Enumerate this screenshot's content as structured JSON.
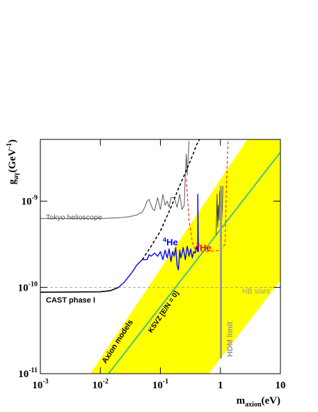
{
  "chart_data": {
    "type": "line",
    "log_x": true,
    "log_y": true,
    "xlim": [
      0.001,
      10
    ],
    "ylim": [
      1e-11,
      5.2e-09
    ],
    "xticks": [
      {
        "value": 0.001,
        "label": "10",
        "exponent": "-3"
      },
      {
        "value": 0.01,
        "label": "10",
        "exponent": "-2"
      },
      {
        "value": 0.1,
        "label": "10",
        "exponent": "-1"
      },
      {
        "value": 1,
        "label": "1"
      },
      {
        "value": 10,
        "label": "10"
      }
    ],
    "yticks": [
      {
        "value": 1e-11,
        "label": "10",
        "exponent": "-11"
      },
      {
        "value": 1e-10,
        "label": "10",
        "exponent": "-10"
      },
      {
        "value": 1e-09,
        "label": "10",
        "exponent": "-9"
      }
    ],
    "xlabel": {
      "main": "m",
      "sub": "axion",
      "rest": "(eV)"
    },
    "ylabel": {
      "main": "g",
      "sub": "aγ",
      "rest": "(GeV",
      "sup": "-1",
      "close": ")"
    },
    "bands": [
      {
        "color": "#ffff00",
        "x": [
          0.0068,
          0.64,
          10,
          10,
          2.8
        ],
        "values": [
          1e-11,
          1e-11,
          1.2e-10,
          5.2e-09,
          5.2e-09
        ]
      }
    ],
    "series": [
      {
        "color": "#49c08a",
        "width": 2,
        "dash": false,
        "x": [
          0.0137,
          10
        ],
        "values": [
          1e-11,
          3.7e-09
        ]
      },
      {
        "color": "#999999",
        "width": 0.8,
        "dash": true,
        "x": [
          0.001,
          10
        ],
        "values": [
          1e-10,
          1e-10
        ]
      },
      {
        "color": "#555555",
        "width": 1,
        "dash": false,
        "x": [
          0.001,
          0.01,
          0.02,
          0.03,
          0.04,
          0.05,
          0.055,
          0.06,
          0.065,
          0.07,
          0.075,
          0.08,
          0.09,
          0.1,
          0.11,
          0.12,
          0.13,
          0.14,
          0.15,
          0.17,
          0.19,
          0.21,
          0.23,
          0.25,
          0.26,
          0.27,
          0.28,
          0.3
        ],
        "values": [
          6.3e-10,
          6.3e-10,
          6.4e-10,
          6.6e-10,
          6.9e-10,
          7.5e-10,
          8.5e-10,
          1e-09,
          1.05e-09,
          9e-10,
          8e-10,
          7.8e-10,
          1.1e-09,
          8e-10,
          1.2e-09,
          9e-10,
          1e-09,
          8.5e-10,
          1.1e-09,
          1.1e-09,
          8.5e-10,
          1.2e-09,
          8e-10,
          9e-10,
          2e-09,
          3.5e-09,
          2e-09,
          5e-09
        ]
      },
      {
        "color": "#444444",
        "width": 1,
        "dash": false,
        "x": [
          0.85,
          0.88,
          0.9,
          0.92,
          0.95,
          0.97,
          1.0,
          1.03,
          1.05,
          1.08,
          1.1
        ],
        "values": [
          4e-10,
          1.2e-09,
          5e-10,
          9e-10,
          6e-10,
          1.3e-09,
          7e-10,
          1.1e-09,
          6e-10,
          9e-10,
          1.5e-09
        ]
      },
      {
        "color": "#000000",
        "width": 1.6,
        "dash": true,
        "x": [
          0.05,
          0.07,
          0.1,
          0.15,
          0.2,
          0.25,
          0.3,
          0.35,
          0.4,
          0.45
        ],
        "values": [
          2.1e-10,
          3e-10,
          4.5e-10,
          8.5e-10,
          1.4e-09,
          2e-09,
          2.7e-09,
          3.5e-09,
          4.5e-09,
          5.2e-09
        ]
      },
      {
        "color": "#ff0000",
        "width": 1,
        "dash": true,
        "x": [
          0.27,
          0.3,
          0.35,
          0.42,
          0.6,
          1.0,
          1.2,
          1.25,
          1.3,
          1.35
        ],
        "values": [
          1.8e-09,
          6e-10,
          3e-10,
          2.6e-10,
          2.6e-10,
          2.7e-10,
          3.2e-10,
          1.2e-09,
          3e-09,
          5.2e-09
        ]
      },
      {
        "color": "#000000",
        "width": 1.6,
        "dash": false,
        "x": [
          0.001,
          0.01,
          0.015,
          0.02
        ],
        "values": [
          8.8e-11,
          8.9e-11,
          9.2e-11,
          1e-10
        ]
      },
      {
        "color": "#0000ff",
        "width": 1.4,
        "dash": false,
        "x": [
          0.02,
          0.025,
          0.03,
          0.035,
          0.04,
          0.05,
          0.06,
          0.065,
          0.07,
          0.08,
          0.09,
          0.1,
          0.11,
          0.12,
          0.13,
          0.14,
          0.15,
          0.16,
          0.17,
          0.18,
          0.19,
          0.2,
          0.21,
          0.22,
          0.24,
          0.26,
          0.28,
          0.3,
          0.32,
          0.34,
          0.36,
          0.38,
          0.4,
          0.42,
          0.42,
          0.43
        ],
        "values": [
          1e-10,
          1.15e-10,
          1.35e-10,
          1.55e-10,
          1.8e-10,
          2.1e-10,
          2.1e-10,
          2.4e-10,
          2.3e-10,
          2.5e-10,
          2.3e-10,
          2.6e-10,
          2.1e-10,
          2.7e-10,
          2.2e-10,
          2.8e-10,
          2e-10,
          2.6e-10,
          2.3e-10,
          2.9e-10,
          1.8e-10,
          1.6e-10,
          2.7e-10,
          2.2e-10,
          2.9e-10,
          2.1e-10,
          3e-10,
          2.3e-10,
          2.8e-10,
          2.2e-10,
          2.6e-10,
          2.5e-10,
          3e-10,
          2.6e-10,
          1.2e-09,
          2.6e-10
        ]
      },
      {
        "color": "#999999",
        "width": 3,
        "dash": false,
        "x": [
          1.02,
          1.02
        ],
        "values": [
          1.5e-11,
          1.5e-09
        ]
      }
    ],
    "annotations": [
      {
        "text": "Tokyo helioscope",
        "color": "#555555"
      },
      {
        "text": "CAST phase I",
        "color": "#000000"
      },
      {
        "text": "HB stars",
        "color": "#999999"
      },
      {
        "text": "Axion models",
        "color": "#000000"
      },
      {
        "text": "KSVZ [E/N = 0]",
        "color": "#000000"
      },
      {
        "text": "HDM limit",
        "color": "#999999"
      },
      {
        "sup": "4",
        "text": "He",
        "color": "#0000ff"
      },
      {
        "sup": "3",
        "text": "He",
        "color": "#ff0000"
      }
    ]
  }
}
